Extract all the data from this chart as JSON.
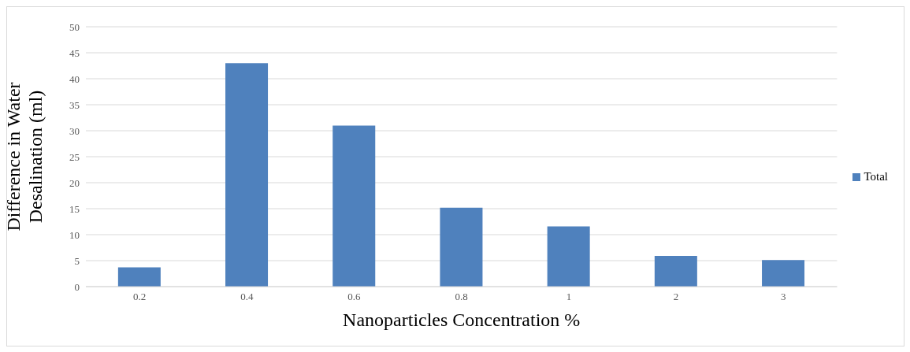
{
  "chart_data": {
    "type": "bar",
    "xlabel": "Nanoparticles Concentration %",
    "ylabel": "Difference in Water Desalination (ml)",
    "categories": [
      "0.2",
      "0.4",
      "0.6",
      "0.8",
      "1",
      "2",
      "3"
    ],
    "series": [
      {
        "name": "Total",
        "color": "#4f81bd",
        "values": [
          3.7,
          43,
          31,
          15.2,
          11.6,
          5.9,
          5.1
        ]
      }
    ],
    "ylim": [
      0,
      50
    ],
    "yticks": [
      0,
      5,
      10,
      15,
      20,
      25,
      30,
      35,
      40,
      45,
      50
    ],
    "grid": "y",
    "legend": "right"
  }
}
